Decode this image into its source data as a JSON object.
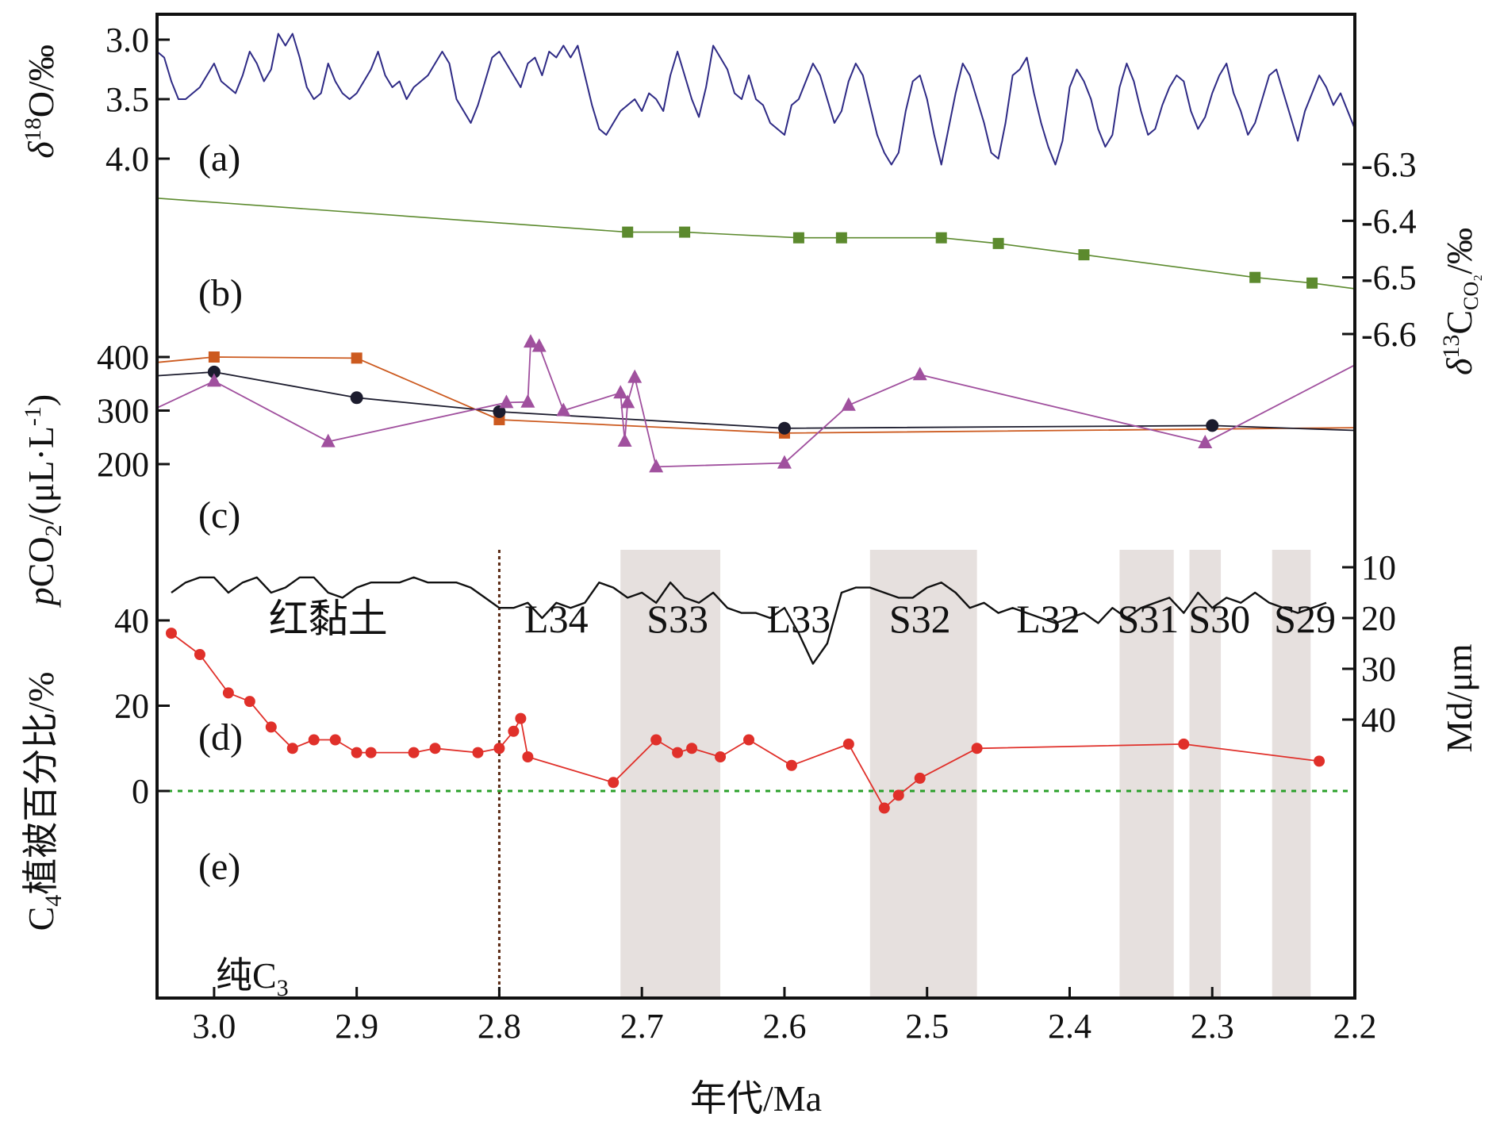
{
  "xlabel": "年代/Ma",
  "xlim": [
    3.04,
    2.2
  ],
  "x_ticks": [
    3.0,
    2.9,
    2.8,
    2.7,
    2.6,
    2.5,
    2.4,
    2.3,
    2.2
  ],
  "x_tick_labels": [
    "3.0",
    "2.9",
    "2.8",
    "2.7",
    "2.6",
    "2.5",
    "2.4",
    "2.3",
    "2.2"
  ],
  "colors": {
    "d18O": "#2e2a85",
    "d13C": "#5c8a2e",
    "pco2_orange": "#cc5a1f",
    "pco2_black": "#1c1c2e",
    "pco2_purple": "#a0509e",
    "grain": "#111111",
    "c4": "#e0302a",
    "c3_line": "#2aa02a",
    "boundary": "#5a2a14",
    "shading": "#e6e0de"
  },
  "chart_data": [
    {
      "panel": "a",
      "panel_label": "(a)",
      "type": "line",
      "ylabel_sym": "δ",
      "ylabel_sup": "18",
      "ylabel_rest": "O/‰",
      "ylim": [
        4.0,
        3.0
      ],
      "y_ticks": [
        3.0,
        3.5,
        4.0
      ],
      "y_tick_labels": [
        "3.0",
        "3.5",
        "4.0"
      ],
      "series": [
        {
          "x": [
            3.04,
            3.035,
            3.03,
            3.025,
            3.02,
            3.015,
            3.01,
            3.005,
            3.0,
            2.995,
            2.99,
            2.985,
            2.98,
            2.975,
            2.97,
            2.965,
            2.96,
            2.955,
            2.95,
            2.945,
            2.94,
            2.935,
            2.93,
            2.925,
            2.92,
            2.915,
            2.91,
            2.905,
            2.9,
            2.895,
            2.89,
            2.885,
            2.88,
            2.875,
            2.87,
            2.865,
            2.86,
            2.855,
            2.85,
            2.845,
            2.84,
            2.835,
            2.83,
            2.825,
            2.82,
            2.815,
            2.81,
            2.805,
            2.8,
            2.795,
            2.79,
            2.785,
            2.78,
            2.775,
            2.77,
            2.765,
            2.76,
            2.755,
            2.75,
            2.745,
            2.74,
            2.735,
            2.73,
            2.725,
            2.72,
            2.715,
            2.71,
            2.705,
            2.7,
            2.695,
            2.69,
            2.685,
            2.68,
            2.675,
            2.67,
            2.665,
            2.66,
            2.655,
            2.65,
            2.645,
            2.64,
            2.635,
            2.63,
            2.625,
            2.62,
            2.615,
            2.61,
            2.605,
            2.6,
            2.595,
            2.59,
            2.585,
            2.58,
            2.575,
            2.57,
            2.565,
            2.56,
            2.555,
            2.55,
            2.545,
            2.54,
            2.535,
            2.53,
            2.525,
            2.52,
            2.515,
            2.51,
            2.505,
            2.5,
            2.495,
            2.49,
            2.485,
            2.48,
            2.475,
            2.47,
            2.465,
            2.46,
            2.455,
            2.45,
            2.445,
            2.44,
            2.435,
            2.43,
            2.425,
            2.42,
            2.415,
            2.41,
            2.405,
            2.4,
            2.395,
            2.39,
            2.385,
            2.38,
            2.375,
            2.37,
            2.365,
            2.36,
            2.355,
            2.35,
            2.345,
            2.34,
            2.335,
            2.33,
            2.325,
            2.32,
            2.315,
            2.31,
            2.305,
            2.3,
            2.295,
            2.29,
            2.285,
            2.28,
            2.275,
            2.27,
            2.265,
            2.26,
            2.255,
            2.25,
            2.245,
            2.24,
            2.235,
            2.23,
            2.225,
            2.22,
            2.215,
            2.21,
            2.205,
            2.2
          ],
          "values": [
            3.1,
            3.15,
            3.35,
            3.5,
            3.5,
            3.45,
            3.4,
            3.3,
            3.2,
            3.35,
            3.4,
            3.45,
            3.3,
            3.1,
            3.2,
            3.35,
            3.25,
            2.95,
            3.05,
            2.95,
            3.15,
            3.4,
            3.5,
            3.45,
            3.2,
            3.35,
            3.45,
            3.5,
            3.45,
            3.35,
            3.25,
            3.1,
            3.3,
            3.4,
            3.35,
            3.5,
            3.4,
            3.35,
            3.3,
            3.2,
            3.1,
            3.2,
            3.5,
            3.6,
            3.7,
            3.55,
            3.35,
            3.15,
            3.1,
            3.2,
            3.3,
            3.4,
            3.2,
            3.15,
            3.3,
            3.1,
            3.15,
            3.05,
            3.15,
            3.05,
            3.3,
            3.55,
            3.75,
            3.8,
            3.7,
            3.6,
            3.55,
            3.5,
            3.6,
            3.45,
            3.5,
            3.6,
            3.3,
            3.1,
            3.3,
            3.5,
            3.65,
            3.4,
            3.05,
            3.15,
            3.25,
            3.45,
            3.5,
            3.3,
            3.5,
            3.55,
            3.7,
            3.75,
            3.8,
            3.55,
            3.5,
            3.35,
            3.2,
            3.3,
            3.5,
            3.7,
            3.6,
            3.35,
            3.2,
            3.3,
            3.55,
            3.8,
            3.95,
            4.05,
            3.95,
            3.6,
            3.35,
            3.3,
            3.5,
            3.8,
            4.05,
            3.75,
            3.45,
            3.2,
            3.3,
            3.5,
            3.7,
            3.95,
            4.0,
            3.7,
            3.3,
            3.25,
            3.15,
            3.45,
            3.7,
            3.9,
            4.05,
            3.85,
            3.4,
            3.25,
            3.35,
            3.5,
            3.75,
            3.9,
            3.8,
            3.4,
            3.2,
            3.35,
            3.6,
            3.8,
            3.75,
            3.55,
            3.4,
            3.3,
            3.35,
            3.6,
            3.75,
            3.65,
            3.45,
            3.3,
            3.2,
            3.45,
            3.6,
            3.8,
            3.7,
            3.5,
            3.3,
            3.25,
            3.45,
            3.65,
            3.85,
            3.6,
            3.45,
            3.3,
            3.4,
            3.55,
            3.45,
            3.6,
            3.75
          ]
        }
      ]
    },
    {
      "panel": "b",
      "panel_label": "(b)",
      "type": "line",
      "ylabel_sym": "δ",
      "ylabel_sup": "13",
      "ylabel_main": "C",
      "ylabel_sub": "CO₂",
      "ylabel_rest": "/‰",
      "y_axis": "right",
      "ylim": [
        -6.3,
        -6.6
      ],
      "y_ticks": [
        -6.3,
        -6.4,
        -6.5,
        -6.6
      ],
      "y_tick_labels": [
        "-6.3",
        "-6.4",
        "-6.5",
        "-6.6"
      ],
      "series": [
        {
          "x": [
            3.04,
            2.71,
            2.67,
            2.59,
            2.56,
            2.49,
            2.45,
            2.39,
            2.27,
            2.23,
            2.2
          ],
          "values": [
            -6.36,
            -6.42,
            -6.42,
            -6.43,
            -6.43,
            -6.43,
            -6.44,
            -6.46,
            -6.5,
            -6.51,
            -6.52
          ],
          "markers": [
            false,
            true,
            true,
            true,
            true,
            true,
            true,
            true,
            true,
            true,
            false
          ]
        }
      ]
    },
    {
      "panel": "c",
      "panel_label": "(c)",
      "type": "line",
      "ylabel_sym": "p",
      "ylabel_main": "CO",
      "ylabel_sub": "2",
      "ylabel_rest": "/(μL·L",
      "ylabel_sup2": "-1",
      "ylabel_close": ")",
      "ylim": [
        180,
        430
      ],
      "y_ticks": [
        200,
        300,
        400
      ],
      "y_tick_labels": [
        "200",
        "300",
        "400"
      ],
      "series": [
        {
          "marker": "square",
          "x": [
            3.04,
            3.0,
            2.9,
            2.8,
            2.6,
            2.2
          ],
          "values": [
            390,
            400,
            398,
            283,
            258,
            268
          ],
          "markers": [
            false,
            true,
            true,
            true,
            true,
            false
          ]
        },
        {
          "marker": "circle",
          "x": [
            3.04,
            3.0,
            2.9,
            2.8,
            2.6,
            2.3,
            2.2
          ],
          "values": [
            365,
            372,
            324,
            298,
            267,
            272,
            263
          ],
          "markers": [
            false,
            true,
            true,
            true,
            true,
            true,
            false
          ]
        },
        {
          "marker": "triangle",
          "x": [
            3.04,
            3.0,
            2.92,
            2.795,
            2.78,
            2.778,
            2.772,
            2.755,
            2.715,
            2.712,
            2.71,
            2.705,
            2.69,
            2.6,
            2.555,
            2.505,
            2.305,
            2.2
          ],
          "values": [
            305,
            355,
            242,
            315,
            316,
            428,
            420,
            300,
            333,
            243,
            315,
            362,
            195,
            202,
            310,
            367,
            240,
            385
          ],
          "markers": [
            false,
            true,
            true,
            true,
            true,
            true,
            true,
            true,
            true,
            true,
            true,
            true,
            true,
            true,
            true,
            true,
            true,
            false
          ]
        }
      ]
    },
    {
      "panel": "d",
      "panel_label": "(d)",
      "type": "line",
      "ylabel": "Md/μm",
      "y_axis": "right",
      "ylim": [
        7,
        57
      ],
      "y_ticks": [
        10,
        20,
        30,
        40
      ],
      "y_tick_labels": [
        "10",
        "20",
        "30",
        "40"
      ],
      "series": [
        {
          "x": [
            3.03,
            3.02,
            3.01,
            3.0,
            2.99,
            2.98,
            2.97,
            2.96,
            2.95,
            2.94,
            2.93,
            2.92,
            2.91,
            2.9,
            2.89,
            2.88,
            2.87,
            2.86,
            2.85,
            2.84,
            2.83,
            2.82,
            2.81,
            2.8,
            2.79,
            2.78,
            2.77,
            2.76,
            2.75,
            2.74,
            2.73,
            2.72,
            2.71,
            2.7,
            2.69,
            2.68,
            2.67,
            2.66,
            2.65,
            2.64,
            2.63,
            2.62,
            2.61,
            2.6,
            2.59,
            2.58,
            2.57,
            2.56,
            2.55,
            2.54,
            2.53,
            2.52,
            2.51,
            2.5,
            2.49,
            2.48,
            2.47,
            2.46,
            2.45,
            2.44,
            2.43,
            2.42,
            2.41,
            2.4,
            2.39,
            2.38,
            2.37,
            2.36,
            2.35,
            2.34,
            2.33,
            2.32,
            2.31,
            2.3,
            2.29,
            2.28,
            2.27,
            2.26,
            2.25,
            2.24,
            2.23,
            2.22
          ],
          "values": [
            15,
            13,
            12,
            12,
            15,
            13,
            12,
            15,
            14,
            12,
            12,
            15,
            16,
            14,
            13,
            13,
            13,
            12,
            13,
            13,
            13,
            14,
            16,
            18,
            18,
            17,
            20,
            17,
            18,
            17,
            13,
            14,
            16,
            15,
            17,
            13,
            16,
            17,
            15,
            18,
            19,
            19,
            20,
            18,
            23,
            29,
            25,
            15,
            14,
            14,
            15,
            16,
            16,
            14,
            13,
            15,
            18,
            17,
            19,
            18,
            19,
            20,
            21,
            20,
            19,
            21,
            18,
            20,
            18,
            17,
            16,
            19,
            15,
            18,
            16,
            17,
            15,
            17,
            18,
            19,
            18,
            17
          ]
        }
      ]
    },
    {
      "panel": "e",
      "panel_label": "(e)",
      "type": "scatter",
      "ylabel_main": "C",
      "ylabel_sub": "4",
      "ylabel_rest": "植被百分比/%",
      "ylim": [
        -8,
        44
      ],
      "y_ticks": [
        0,
        20,
        40
      ],
      "y_tick_labels": [
        "0",
        "20",
        "40"
      ],
      "series": [
        {
          "x": [
            3.03,
            3.01,
            2.99,
            2.975,
            2.96,
            2.945,
            2.93,
            2.915,
            2.9,
            2.89,
            2.86,
            2.845,
            2.815,
            2.8,
            2.79,
            2.785,
            2.78,
            2.72,
            2.69,
            2.675,
            2.665,
            2.645,
            2.625,
            2.595,
            2.555,
            2.53,
            2.52,
            2.505,
            2.465,
            2.32,
            2.225
          ],
          "values": [
            37,
            32,
            23,
            21,
            15,
            10,
            12,
            12,
            9,
            9,
            9,
            10,
            9,
            10,
            14,
            17,
            8,
            2,
            12,
            9,
            10,
            8,
            12,
            6,
            11,
            -4,
            -1,
            3,
            10,
            11,
            7
          ]
        }
      ],
      "baseline": 0,
      "baseline_label_main": "纯C",
      "baseline_label_sub": "3"
    }
  ],
  "stratigraphy": {
    "labels": [
      {
        "text": "红黏土",
        "x": 2.92
      },
      {
        "text": "L34",
        "x": 2.76
      },
      {
        "text": "S33",
        "x": 2.675
      },
      {
        "text": "L33",
        "x": 2.59
      },
      {
        "text": "S32",
        "x": 2.505
      },
      {
        "text": "L32",
        "x": 2.415
      },
      {
        "text": "S31",
        "x": 2.345
      },
      {
        "text": "S30",
        "x": 2.295
      },
      {
        "text": "S29",
        "x": 2.235
      }
    ],
    "shaded_bands": [
      {
        "x_start": 2.715,
        "x_end": 2.645
      },
      {
        "x_start": 2.54,
        "x_end": 2.465
      },
      {
        "x_start": 2.365,
        "x_end": 2.327
      },
      {
        "x_start": 2.316,
        "x_end": 2.294
      },
      {
        "x_start": 2.258,
        "x_end": 2.231
      }
    ],
    "boundary_x": 2.8
  }
}
